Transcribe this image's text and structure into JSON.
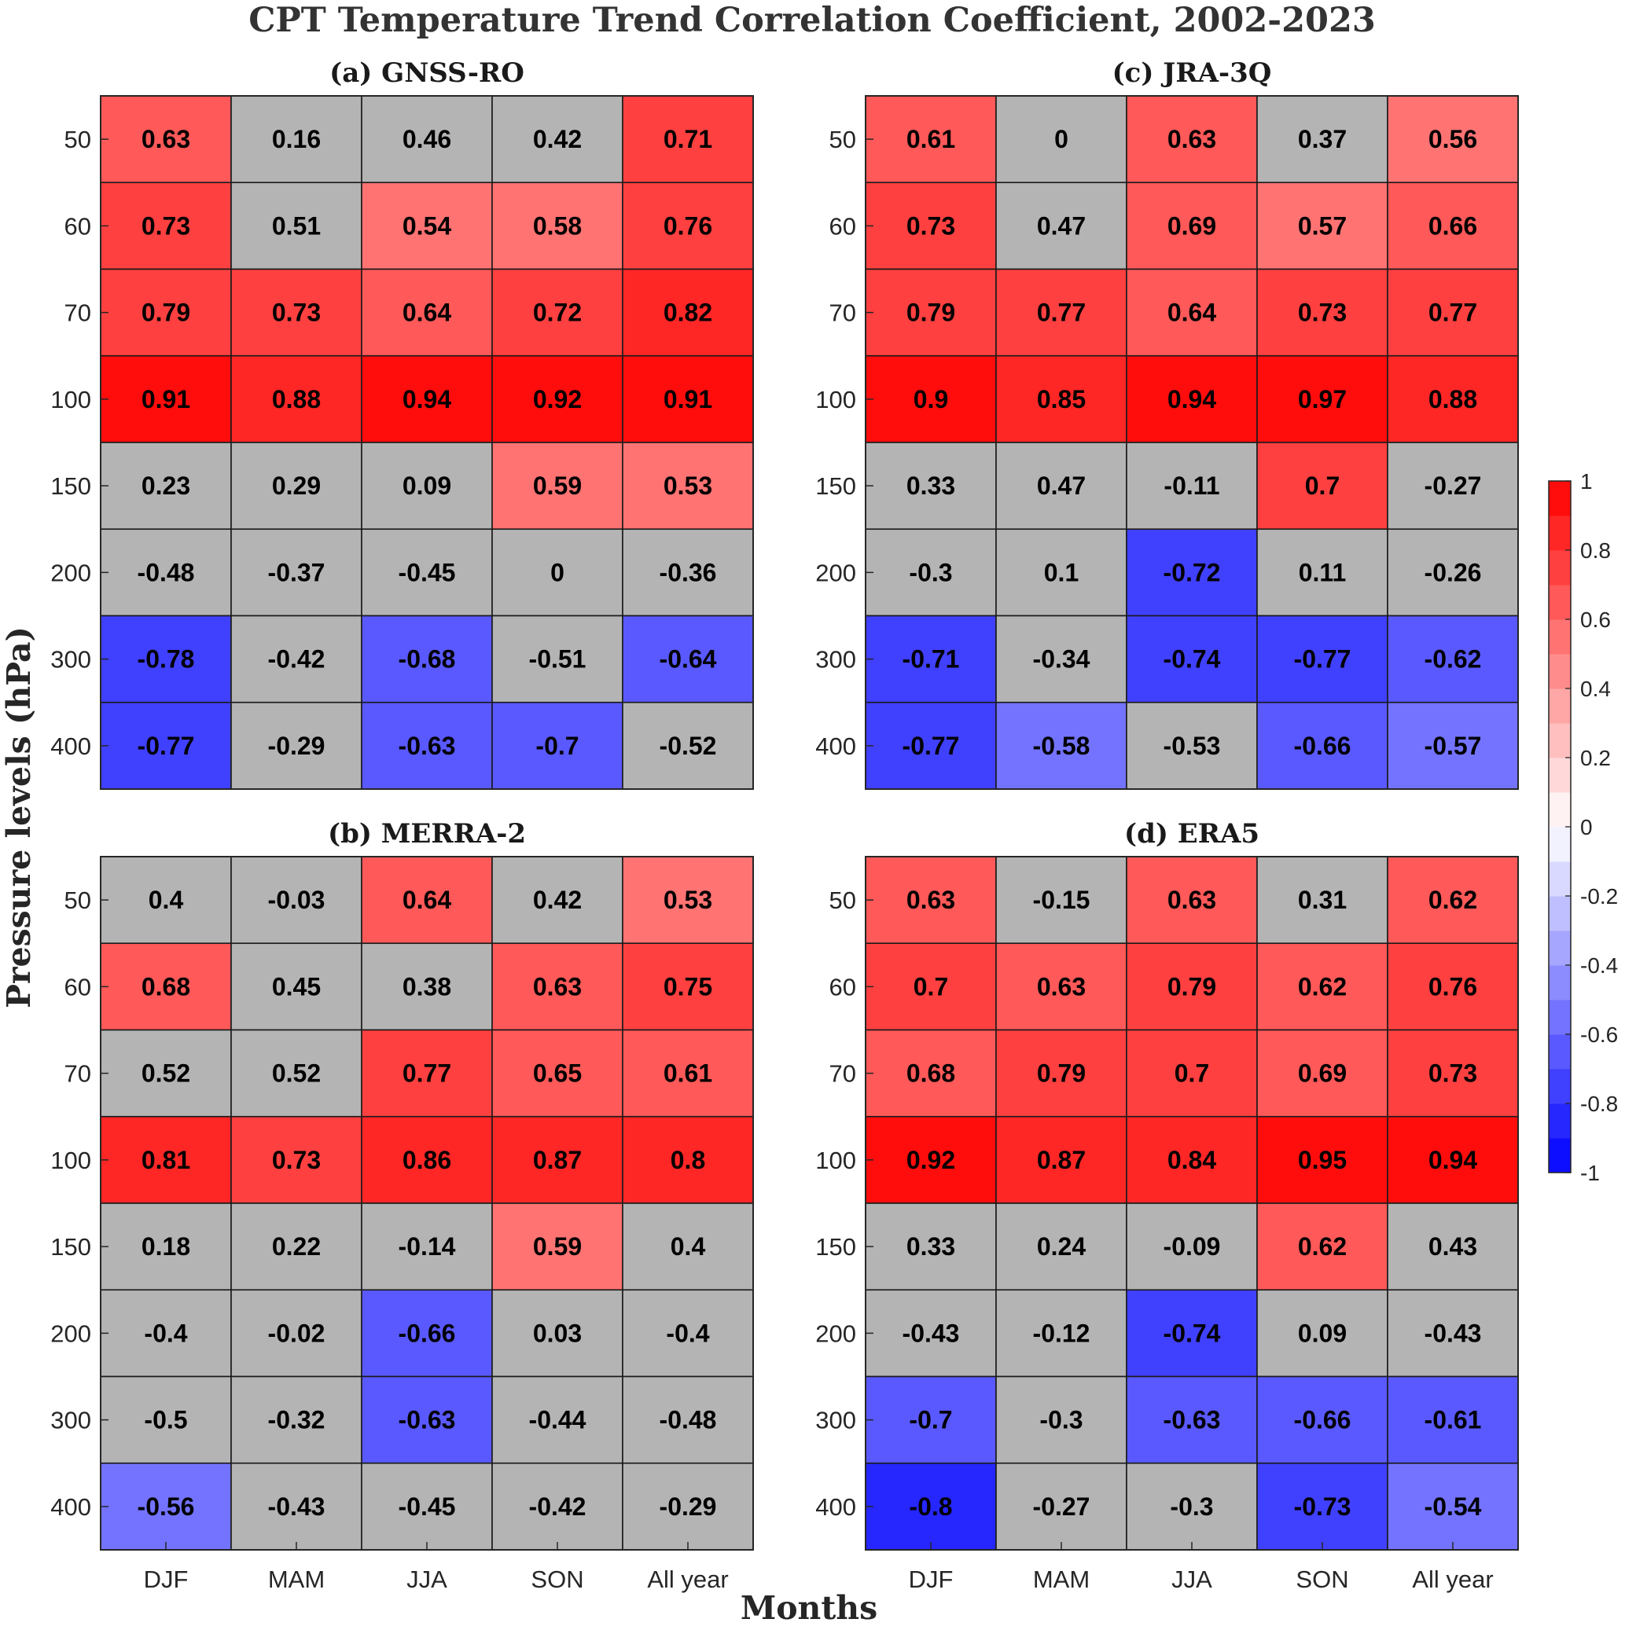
{
  "chart_data": {
    "type": "heatmap",
    "title": "CPT Temperature Trend Correlation Coefficient, 2002-2023",
    "xlabel": "Months",
    "ylabel": "Pressure levels (hPa)",
    "x": [
      "DJF",
      "MAM",
      "JJA",
      "SON",
      "All year"
    ],
    "y": [
      "50",
      "60",
      "70",
      "100",
      "150",
      "200",
      "300",
      "400"
    ],
    "color_range": [
      -1,
      1
    ],
    "colorbar_ticks": [
      "1",
      "0.8",
      "0.6",
      "0.4",
      "0.2",
      "0",
      "-0.2",
      "-0.4",
      "-0.6",
      "-0.8",
      "-1"
    ],
    "insignificant_color": "#b4b4b4",
    "colors": {
      "positive": "#ff0000",
      "negative": "#0000ff",
      "neutral": "#ffffff"
    },
    "panels": [
      {
        "title": "(a) GNSS-RO",
        "values": [
          [
            0.63,
            0.16,
            0.46,
            0.42,
            0.71
          ],
          [
            0.73,
            0.51,
            0.54,
            0.58,
            0.76
          ],
          [
            0.79,
            0.73,
            0.64,
            0.72,
            0.82
          ],
          [
            0.91,
            0.88,
            0.94,
            0.92,
            0.91
          ],
          [
            0.23,
            0.29,
            0.09,
            0.59,
            0.53
          ],
          [
            -0.48,
            -0.37,
            -0.45,
            0,
            -0.36
          ],
          [
            -0.78,
            -0.42,
            -0.68,
            -0.51,
            -0.64
          ],
          [
            -0.77,
            -0.29,
            -0.63,
            -0.7,
            -0.52
          ]
        ],
        "significant": [
          [
            true,
            false,
            false,
            false,
            true
          ],
          [
            true,
            false,
            true,
            true,
            true
          ],
          [
            true,
            true,
            true,
            true,
            true
          ],
          [
            true,
            true,
            true,
            true,
            true
          ],
          [
            false,
            false,
            false,
            true,
            true
          ],
          [
            false,
            false,
            false,
            false,
            false
          ],
          [
            true,
            false,
            true,
            false,
            true
          ],
          [
            true,
            false,
            true,
            true,
            false
          ]
        ]
      },
      {
        "title": "(c) JRA-3Q",
        "values": [
          [
            0.61,
            0,
            0.63,
            0.37,
            0.56
          ],
          [
            0.73,
            0.47,
            0.69,
            0.57,
            0.66
          ],
          [
            0.79,
            0.77,
            0.64,
            0.73,
            0.77
          ],
          [
            0.9,
            0.85,
            0.94,
            0.97,
            0.88
          ],
          [
            0.33,
            0.47,
            -0.11,
            0.7,
            -0.27
          ],
          [
            -0.3,
            0.1,
            -0.72,
            0.11,
            -0.26
          ],
          [
            -0.71,
            -0.34,
            -0.74,
            -0.77,
            -0.62
          ],
          [
            -0.77,
            -0.58,
            -0.53,
            -0.66,
            -0.57
          ]
        ],
        "significant": [
          [
            true,
            false,
            true,
            false,
            true
          ],
          [
            true,
            false,
            true,
            true,
            true
          ],
          [
            true,
            true,
            true,
            true,
            true
          ],
          [
            true,
            true,
            true,
            true,
            true
          ],
          [
            false,
            false,
            false,
            true,
            false
          ],
          [
            false,
            false,
            true,
            false,
            false
          ],
          [
            true,
            false,
            true,
            true,
            true
          ],
          [
            true,
            true,
            false,
            true,
            true
          ]
        ]
      },
      {
        "title": "(b) MERRA-2",
        "values": [
          [
            0.4,
            -0.03,
            0.64,
            0.42,
            0.53
          ],
          [
            0.68,
            0.45,
            0.38,
            0.63,
            0.75
          ],
          [
            0.52,
            0.52,
            0.77,
            0.65,
            0.61
          ],
          [
            0.81,
            0.73,
            0.86,
            0.87,
            0.8
          ],
          [
            0.18,
            0.22,
            -0.14,
            0.59,
            0.4
          ],
          [
            -0.4,
            -0.02,
            -0.66,
            0.03,
            -0.4
          ],
          [
            -0.5,
            -0.32,
            -0.63,
            -0.44,
            -0.48
          ],
          [
            -0.56,
            -0.43,
            -0.45,
            -0.42,
            -0.29
          ]
        ],
        "significant": [
          [
            false,
            false,
            true,
            false,
            true
          ],
          [
            true,
            false,
            false,
            true,
            true
          ],
          [
            false,
            false,
            true,
            true,
            true
          ],
          [
            true,
            true,
            true,
            true,
            true
          ],
          [
            false,
            false,
            false,
            true,
            false
          ],
          [
            false,
            false,
            true,
            false,
            false
          ],
          [
            false,
            false,
            true,
            false,
            false
          ],
          [
            true,
            false,
            false,
            false,
            false
          ]
        ]
      },
      {
        "title": "(d) ERA5",
        "values": [
          [
            0.63,
            -0.15,
            0.63,
            0.31,
            0.62
          ],
          [
            0.7,
            0.63,
            0.79,
            0.62,
            0.76
          ],
          [
            0.68,
            0.79,
            0.7,
            0.69,
            0.73
          ],
          [
            0.92,
            0.87,
            0.84,
            0.95,
            0.94
          ],
          [
            0.33,
            0.24,
            -0.09,
            0.62,
            0.43
          ],
          [
            -0.43,
            -0.12,
            -0.74,
            0.09,
            -0.43
          ],
          [
            -0.7,
            -0.3,
            -0.63,
            -0.66,
            -0.61
          ],
          [
            -0.8,
            -0.27,
            -0.3,
            -0.73,
            -0.54
          ]
        ],
        "significant": [
          [
            true,
            false,
            true,
            false,
            true
          ],
          [
            true,
            true,
            true,
            true,
            true
          ],
          [
            true,
            true,
            true,
            true,
            true
          ],
          [
            true,
            true,
            true,
            true,
            true
          ],
          [
            false,
            false,
            false,
            true,
            false
          ],
          [
            false,
            false,
            true,
            false,
            false
          ],
          [
            true,
            false,
            true,
            true,
            true
          ],
          [
            true,
            false,
            false,
            true,
            true
          ]
        ]
      }
    ]
  }
}
